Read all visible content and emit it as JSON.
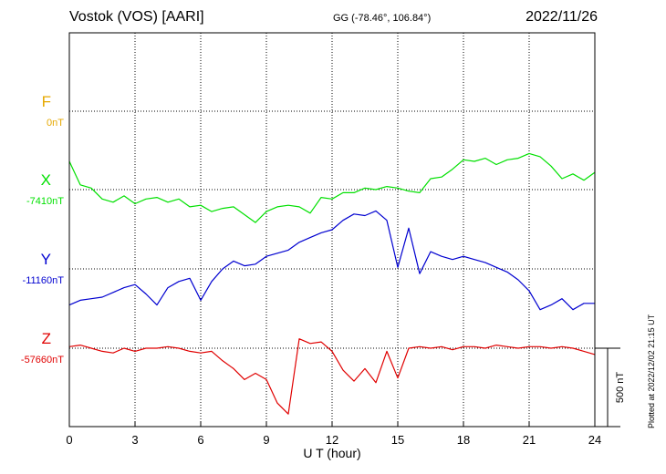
{
  "header": {
    "station": "Vostok (VOS)  [AARI]",
    "coords": "GG (-78.46°, 106.84°)",
    "date": "2022/11/26",
    "plotted": "Plotted at 2022/12/02 21:15 UT"
  },
  "colors": {
    "F": "#e6a800",
    "X": "#00e000",
    "Y": "#0000d0",
    "Z": "#e00000"
  },
  "chart_data": {
    "type": "line",
    "xlabel": "U T (hour)",
    "xlim": [
      0,
      24
    ],
    "xticks": [
      "0",
      "3",
      "6",
      "9",
      "12",
      "15",
      "18",
      "21",
      "24"
    ],
    "scale_bar_label": "500 nT",
    "channels": [
      {
        "name": "F",
        "baseline_label": "0nT",
        "x": [],
        "y": []
      },
      {
        "name": "X",
        "baseline_label": "-7410nT",
        "x": [
          0,
          0.5,
          1,
          1.5,
          2,
          2.5,
          3,
          3.5,
          4,
          4.5,
          5,
          5.5,
          6,
          6.5,
          7,
          7.5,
          8,
          8.5,
          9,
          9.5,
          10,
          10.5,
          11,
          11.5,
          12,
          12.5,
          13,
          13.5,
          14,
          14.5,
          15,
          15.5,
          16,
          16.5,
          17,
          17.5,
          18,
          18.5,
          19,
          19.5,
          20,
          20.5,
          21,
          21.5,
          22,
          22.5,
          23,
          23.5,
          24
        ],
        "y": [
          180,
          30,
          10,
          -60,
          -80,
          -40,
          -90,
          -60,
          -50,
          -80,
          -60,
          -110,
          -100,
          -140,
          -120,
          -110,
          -160,
          -210,
          -140,
          -110,
          -100,
          -110,
          -150,
          -50,
          -60,
          -20,
          -20,
          10,
          0,
          20,
          10,
          -10,
          -20,
          70,
          80,
          130,
          190,
          180,
          200,
          160,
          190,
          200,
          230,
          210,
          150,
          70,
          100,
          60,
          110
        ]
      },
      {
        "name": "Y",
        "baseline_label": "-11160nT",
        "x": [
          0,
          0.5,
          1,
          1.5,
          2,
          2.5,
          3,
          3.5,
          4,
          4.5,
          5,
          5.5,
          6,
          6.5,
          7,
          7.5,
          8,
          8.5,
          9,
          9.5,
          10,
          10.5,
          11,
          11.5,
          12,
          12.5,
          13,
          13.5,
          14,
          14.5,
          15,
          15.5,
          16,
          16.5,
          17,
          17.5,
          18,
          18.5,
          19,
          19.5,
          20,
          20.5,
          21,
          21.5,
          22,
          22.5,
          23,
          23.5,
          24
        ],
        "y": [
          -230,
          -200,
          -190,
          -180,
          -150,
          -120,
          -100,
          -160,
          -230,
          -120,
          -80,
          -60,
          -200,
          -80,
          0,
          50,
          20,
          30,
          80,
          100,
          120,
          170,
          200,
          230,
          250,
          310,
          350,
          340,
          370,
          310,
          10,
          260,
          -30,
          110,
          80,
          60,
          80,
          60,
          40,
          10,
          -20,
          -70,
          -140,
          -260,
          -230,
          -190,
          -260,
          -220,
          -220
        ]
      },
      {
        "name": "Z",
        "baseline_label": "-57660nT",
        "x": [
          0,
          0.5,
          1,
          1.5,
          2,
          2.5,
          3,
          3.5,
          4,
          4.5,
          5,
          5.5,
          6,
          6.5,
          7,
          7.5,
          8,
          8.5,
          9,
          9.5,
          10,
          10.5,
          11,
          11.5,
          12,
          12.5,
          13,
          13.5,
          14,
          14.5,
          15,
          15.5,
          16,
          16.5,
          17,
          17.5,
          18,
          18.5,
          19,
          19.5,
          20,
          20.5,
          21,
          21.5,
          22,
          22.5,
          23,
          23.5,
          24
        ],
        "y": [
          10,
          20,
          0,
          -20,
          -30,
          0,
          -20,
          0,
          0,
          10,
          0,
          -20,
          -30,
          -20,
          -80,
          -130,
          -200,
          -160,
          -200,
          -350,
          -420,
          60,
          30,
          40,
          -20,
          -140,
          -210,
          -130,
          -220,
          -20,
          -190,
          0,
          10,
          0,
          10,
          -10,
          10,
          10,
          0,
          20,
          10,
          0,
          10,
          10,
          0,
          10,
          0,
          -20,
          -40
        ]
      }
    ]
  }
}
